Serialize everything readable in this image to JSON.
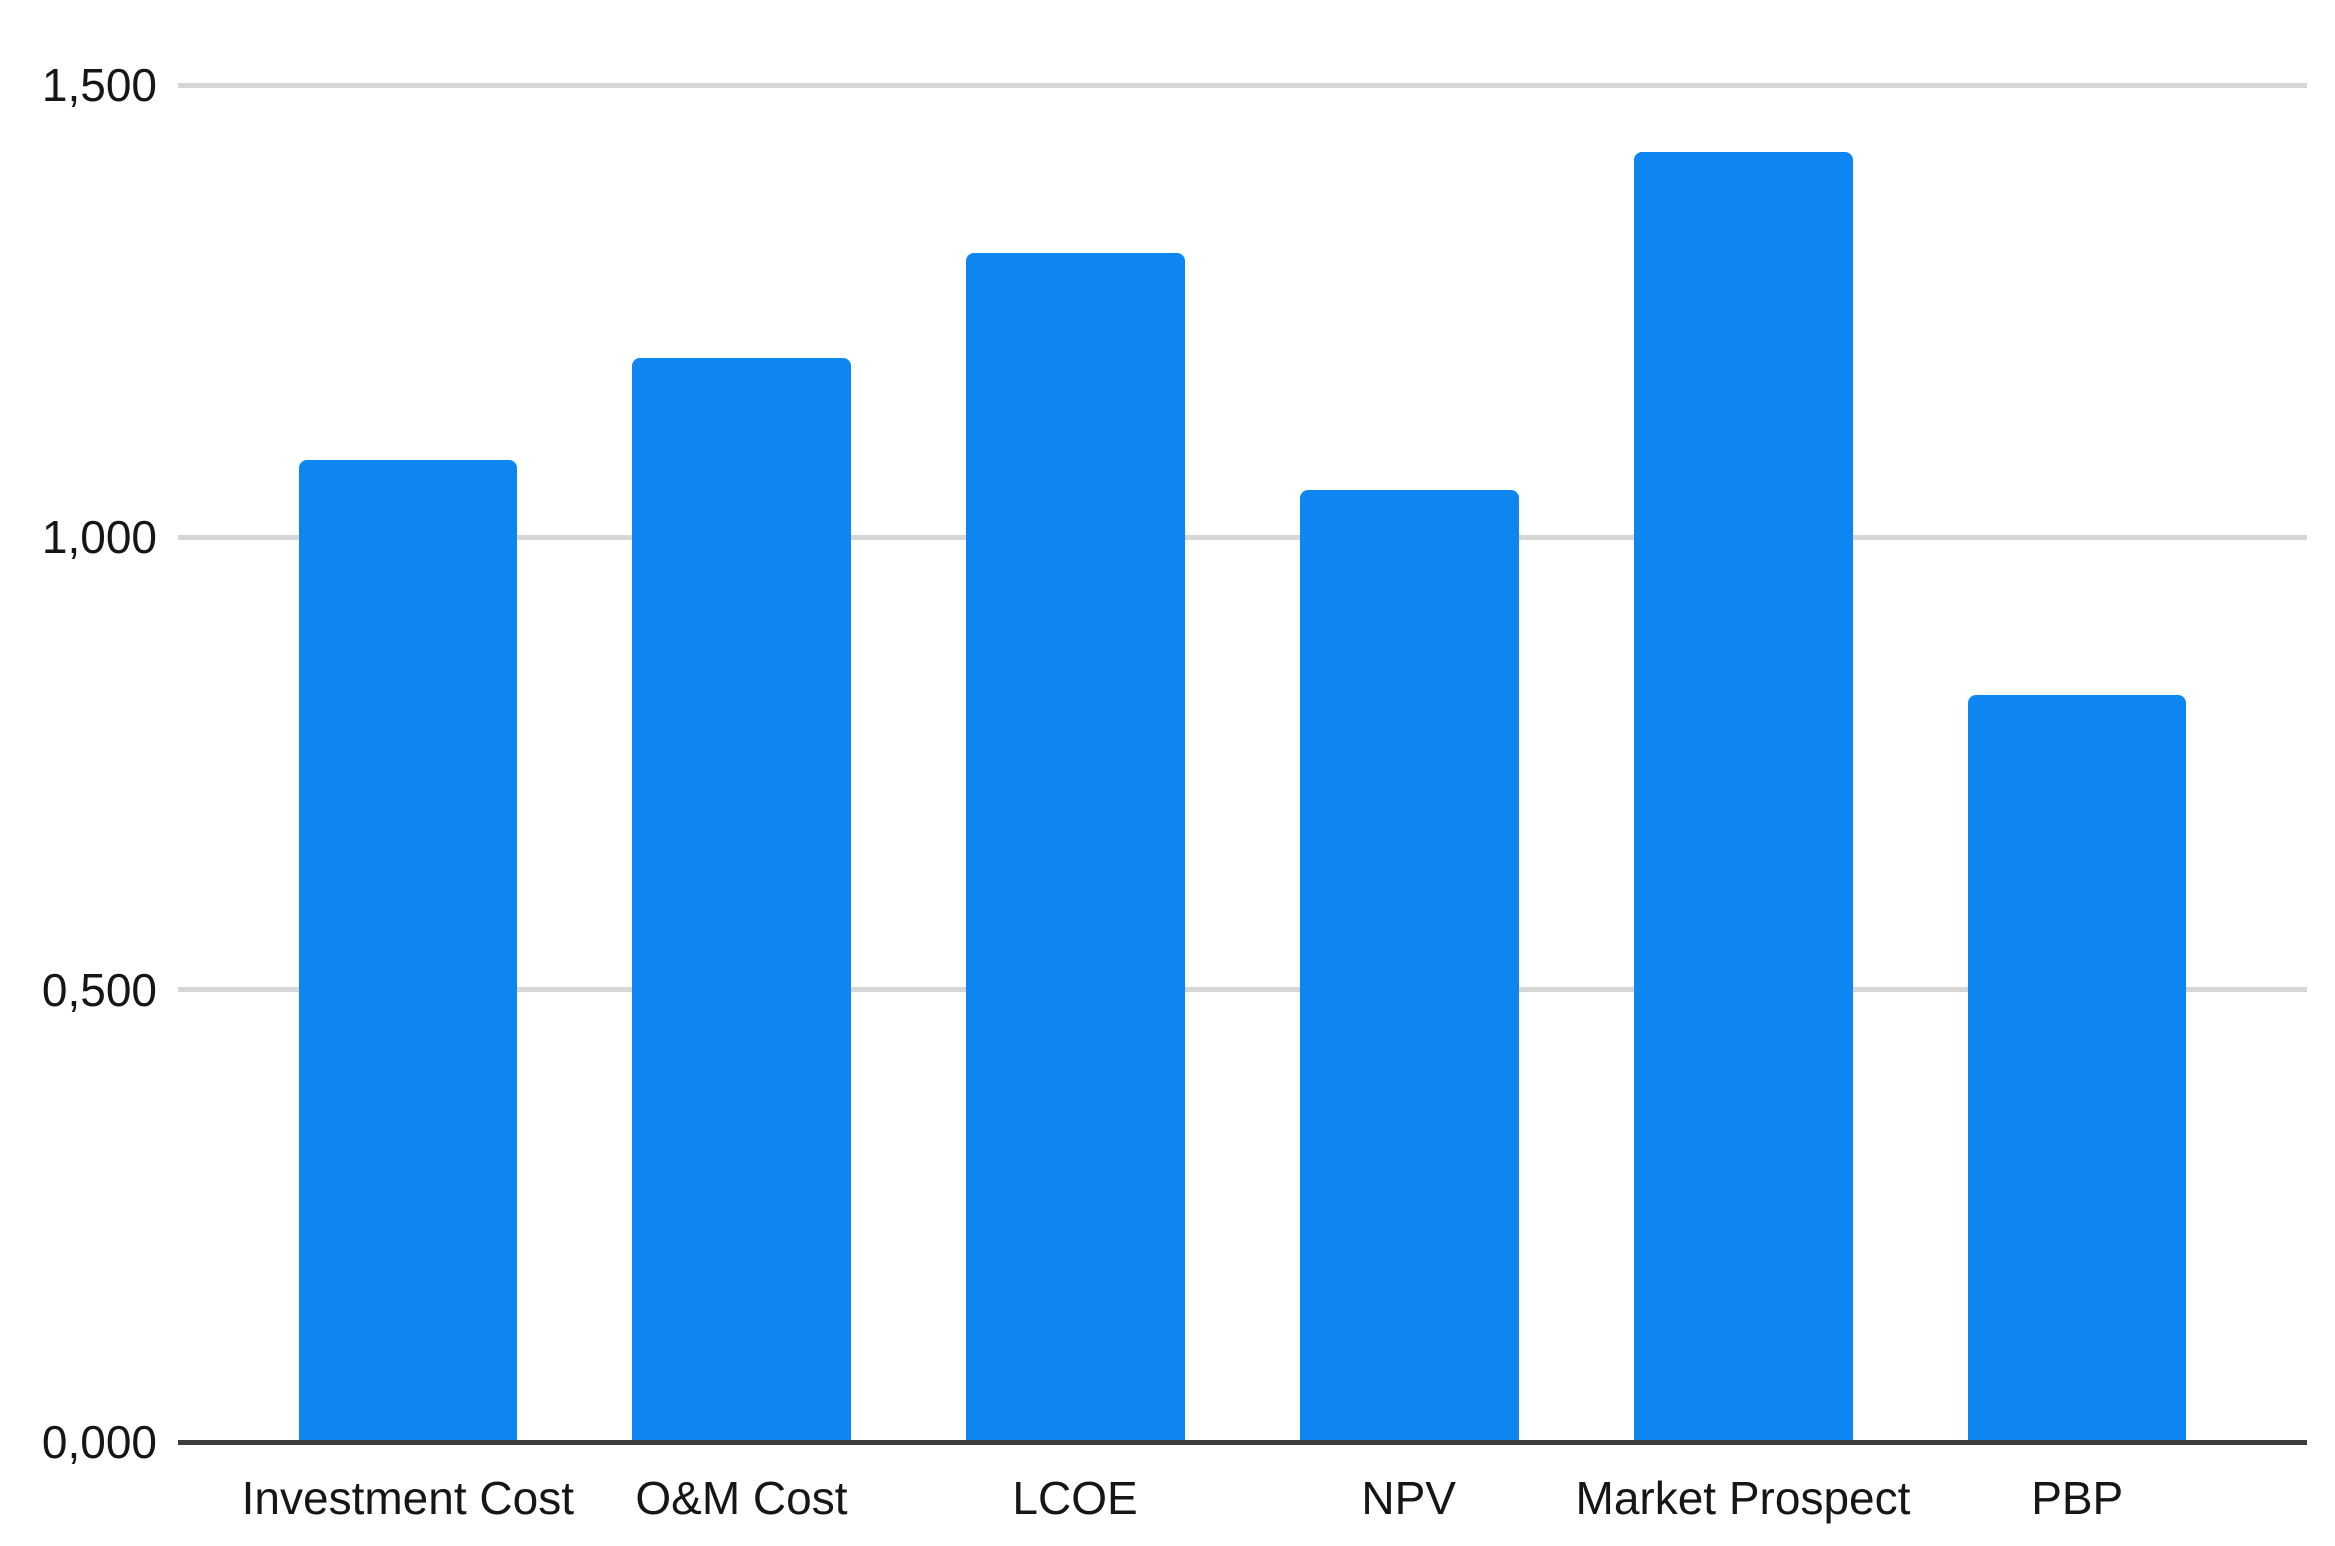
{
  "chart_data": {
    "type": "bar",
    "title": "",
    "xlabel": "",
    "ylabel": "",
    "categories": [
      "Investment Cost",
      "O&M Cost",
      "LCOE",
      "NPV",
      "Market Prospect",
      "PBP"
    ],
    "values": [
      1.086,
      1.198,
      1.314,
      1.052,
      1.426,
      0.826
    ],
    "ylim": [
      0,
      1.5
    ],
    "yticks": [
      {
        "value": 0.0,
        "label": "0,000"
      },
      {
        "value": 0.5,
        "label": "0,500"
      },
      {
        "value": 1.0,
        "label": "1,000"
      },
      {
        "value": 1.5,
        "label": "1,500"
      }
    ],
    "grid": true,
    "legend": false,
    "colors": {
      "bar": "#0d86f2",
      "gridline": "#d6d6d6",
      "axis_line": "#3d3d3d",
      "text": "#161616",
      "background": "#ffffff"
    }
  }
}
